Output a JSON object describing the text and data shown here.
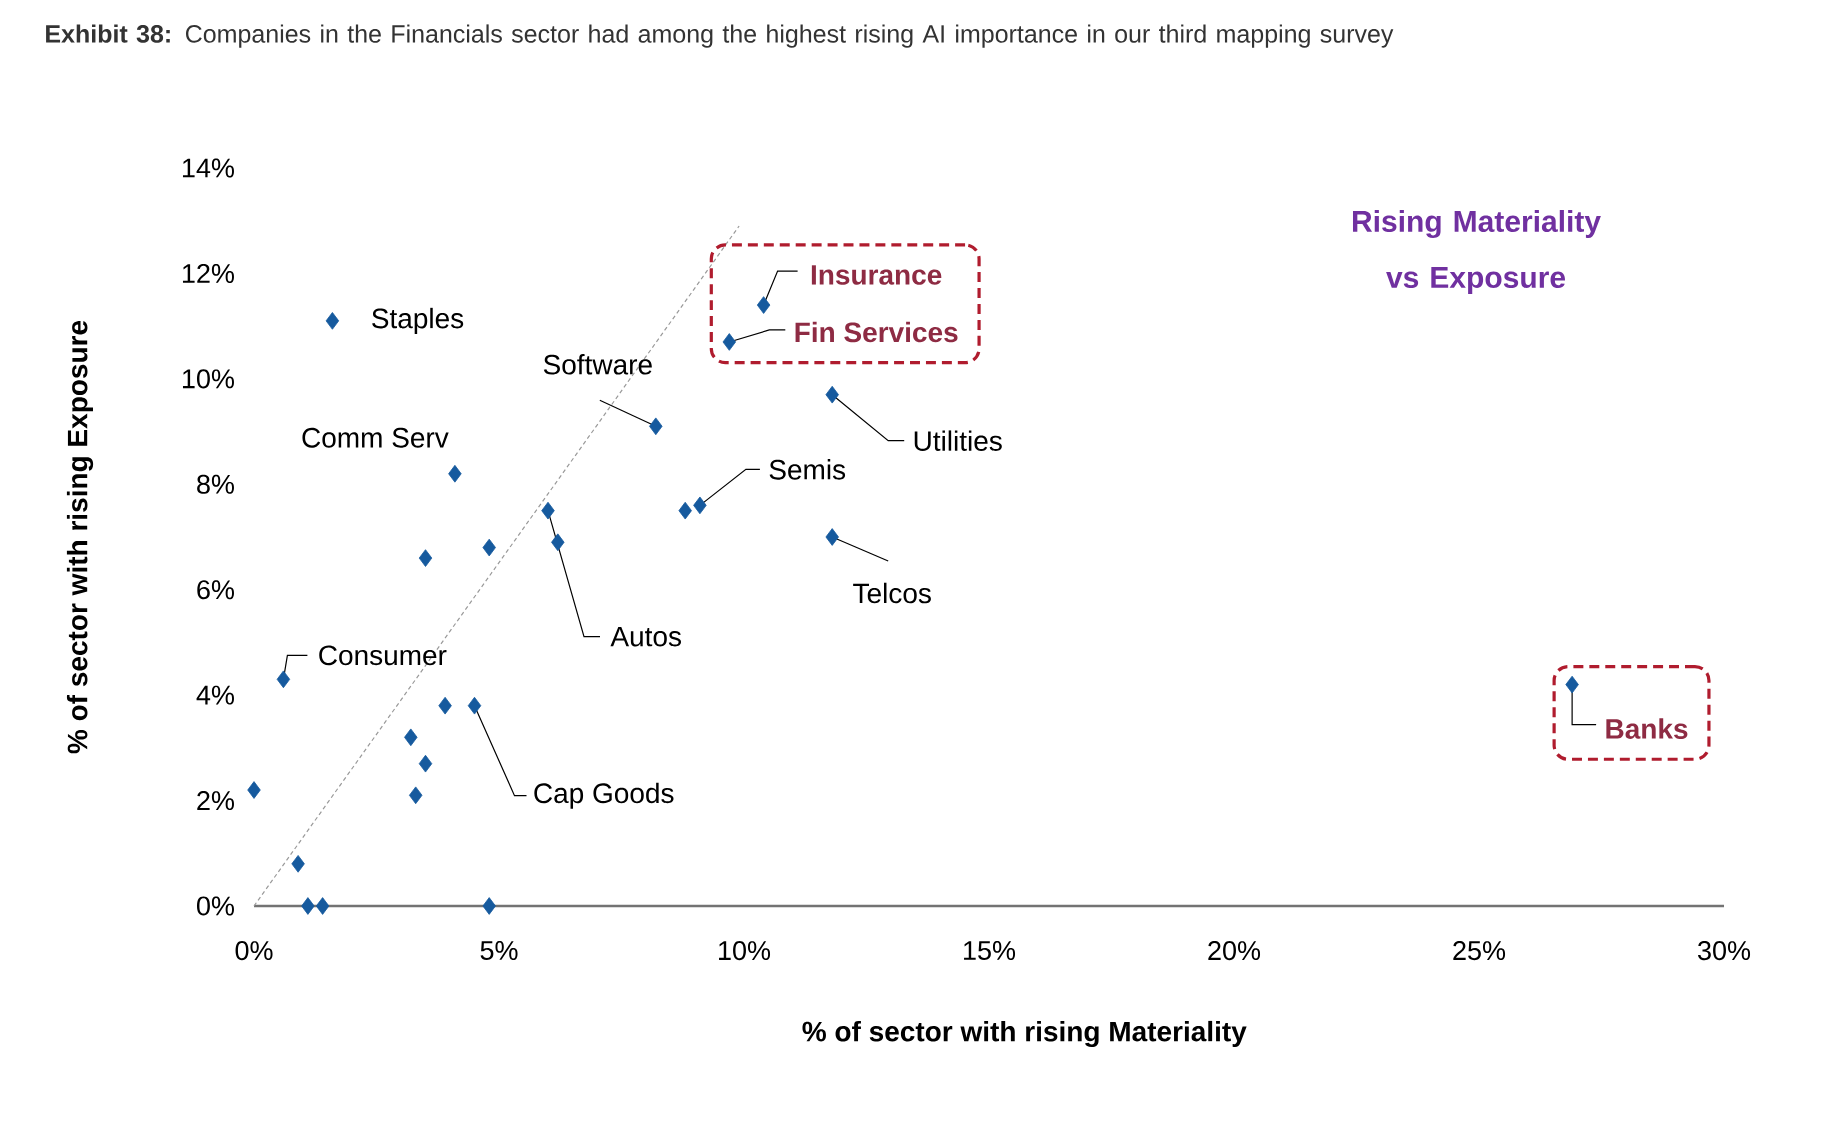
{
  "chart_data": {
    "type": "scatter",
    "title": "**Exhibit 38:** Companies in the Financials sector had among the highest rising AI importance in our third mapping survey",
    "xlabel": "% of sector with rising Materiality",
    "ylabel": "% of sector with rising Exposure",
    "xlim": [
      0,
      30
    ],
    "ylim": [
      0,
      14
    ],
    "xticks": [
      {
        "value": 0,
        "label": "0%"
      },
      {
        "value": 5,
        "label": "5%"
      },
      {
        "value": 10,
        "label": "10%"
      },
      {
        "value": 15,
        "label": "15%"
      },
      {
        "value": 20,
        "label": "20%"
      },
      {
        "value": 25,
        "label": "25%"
      },
      {
        "value": 30,
        "label": "30%"
      }
    ],
    "yticks": [
      {
        "value": 0,
        "label": "0%"
      },
      {
        "value": 2,
        "label": "2%"
      },
      {
        "value": 4,
        "label": "4%"
      },
      {
        "value": 6,
        "label": "6%"
      },
      {
        "value": 8,
        "label": "8%"
      },
      {
        "value": 10,
        "label": "10%"
      },
      {
        "value": 12,
        "label": "12%"
      },
      {
        "value": 14,
        "label": "14%"
      }
    ],
    "marker": "diamond",
    "series": [
      {
        "type": "line",
        "color": "#999999",
        "line_style": "dashed",
        "marker": "none",
        "x": [
          0,
          9.9
        ],
        "values": [
          0,
          12.9
        ]
      },
      {
        "type": "scatter",
        "color": "#165a9e",
        "x": [
          1.6,
          4.1,
          3.5,
          4.8,
          6.0,
          6.2,
          8.2,
          8.8,
          9.1,
          9.7,
          10.4,
          11.8,
          11.8,
          0.6,
          3.9,
          4.5,
          3.2,
          3.5,
          3.3,
          0.0,
          0.9,
          1.1,
          1.4,
          4.8,
          26.9
        ],
        "values": [
          11.1,
          8.2,
          6.6,
          6.8,
          7.5,
          6.9,
          9.1,
          7.5,
          7.6,
          10.7,
          11.4,
          9.7,
          7.0,
          4.3,
          3.8,
          3.8,
          3.2,
          2.7,
          2.1,
          2.2,
          0.8,
          0.0,
          0.0,
          0.0,
          4.2
        ]
      }
    ],
    "annotations": [
      {
        "text": "Staples",
        "x": 1.6,
        "y": 11.1
      },
      {
        "text": "Software",
        "x": 8.2,
        "y": 9.1
      },
      {
        "text": "Comm Serv",
        "x": 4.1,
        "y": 8.2
      },
      {
        "text": "Autos",
        "x": 6.0,
        "y": 7.5
      },
      {
        "text": "Semis",
        "x": 9.1,
        "y": 7.6
      },
      {
        "text": "Insurance",
        "x": 10.4,
        "y": 11.4
      },
      {
        "text": "Fin Services",
        "x": 9.7,
        "y": 10.7
      },
      {
        "text": "Utilities",
        "x": 11.8,
        "y": 9.7
      },
      {
        "text": "Telcos",
        "x": 11.8,
        "y": 7.0
      },
      {
        "text": "Consumer",
        "x": 0.6,
        "y": 4.3
      },
      {
        "text": "Cap Goods",
        "x": 4.5,
        "y": 3.8
      },
      {
        "text": "Banks",
        "x": 26.9,
        "y": 4.2
      },
      "Rising Materiality vs Exposure"
    ]
  }
}
